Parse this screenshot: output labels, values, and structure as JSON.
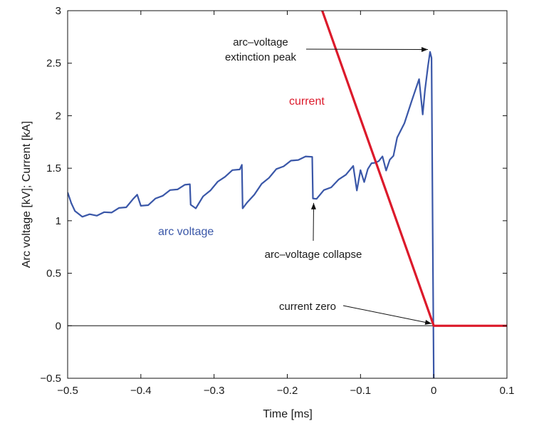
{
  "chart_data": {
    "type": "line",
    "xlabel": "Time [ms]",
    "ylabel": "Arc voltage [kV]; Current [kA]",
    "xlim": [
      -0.5,
      0.1
    ],
    "ylim": [
      -0.5,
      3
    ],
    "x_ticks": [
      "−0.5",
      "−0.4",
      "−0.3",
      "−0.2",
      "−0.1",
      "0",
      "0.1"
    ],
    "y_ticks": [
      "−0.5",
      "0",
      "0.5",
      "1",
      "1.5",
      "2",
      "2.5",
      "3"
    ],
    "x_tick_values": [
      -0.5,
      -0.4,
      -0.3,
      -0.2,
      -0.1,
      0,
      0.1
    ],
    "y_tick_values": [
      -0.5,
      0,
      0.5,
      1,
      1.5,
      2,
      2.5,
      3
    ],
    "grid": false,
    "series": [
      {
        "name": "arc voltage",
        "color": "#3a57a8",
        "x": [
          -0.5,
          -0.495,
          -0.49,
          -0.48,
          -0.47,
          -0.46,
          -0.45,
          -0.44,
          -0.43,
          -0.42,
          -0.41,
          -0.405,
          -0.4,
          -0.39,
          -0.38,
          -0.37,
          -0.36,
          -0.35,
          -0.34,
          -0.333,
          -0.332,
          -0.325,
          -0.315,
          -0.305,
          -0.295,
          -0.285,
          -0.275,
          -0.265,
          -0.262,
          -0.261,
          -0.255,
          -0.245,
          -0.235,
          -0.225,
          -0.215,
          -0.205,
          -0.195,
          -0.185,
          -0.175,
          -0.166,
          -0.165,
          -0.16,
          -0.15,
          -0.14,
          -0.13,
          -0.12,
          -0.11,
          -0.105,
          -0.1,
          -0.095,
          -0.09,
          -0.085,
          -0.08,
          -0.075,
          -0.07,
          -0.065,
          -0.06,
          -0.055,
          -0.05,
          -0.04,
          -0.03,
          -0.02,
          -0.015,
          -0.012,
          -0.008,
          -0.005,
          -0.003,
          -0.0015,
          0.0
        ],
        "y": [
          1.27,
          1.18,
          1.08,
          1.05,
          1.05,
          1.06,
          1.07,
          1.09,
          1.11,
          1.14,
          1.2,
          1.26,
          1.13,
          1.16,
          1.2,
          1.25,
          1.28,
          1.31,
          1.33,
          1.36,
          1.14,
          1.13,
          1.22,
          1.3,
          1.36,
          1.43,
          1.47,
          1.5,
          1.52,
          1.13,
          1.16,
          1.26,
          1.34,
          1.42,
          1.48,
          1.53,
          1.56,
          1.59,
          1.6,
          1.62,
          1.2,
          1.22,
          1.28,
          1.33,
          1.38,
          1.45,
          1.51,
          1.3,
          1.47,
          1.38,
          1.48,
          1.56,
          1.54,
          1.58,
          1.6,
          1.49,
          1.57,
          1.63,
          1.78,
          1.94,
          2.13,
          2.36,
          2.0,
          2.25,
          2.45,
          2.62,
          2.55,
          1.0,
          -0.5
        ]
      },
      {
        "name": "current",
        "color": "#dc1a2b",
        "x": [
          -0.1523,
          0.0,
          0.1
        ],
        "y": [
          3.0,
          0.0,
          0.0
        ]
      }
    ],
    "baseline": 0,
    "annotations": [
      {
        "lines": [
          "arc–voltage",
          "extinction peak"
        ],
        "target": [
          -0.005,
          2.63
        ]
      },
      {
        "lines": [
          "arc–voltage collapse"
        ],
        "target": [
          -0.164,
          1.21
        ]
      },
      {
        "lines": [
          "current zero"
        ],
        "target": [
          0.0,
          0.0
        ]
      }
    ]
  }
}
